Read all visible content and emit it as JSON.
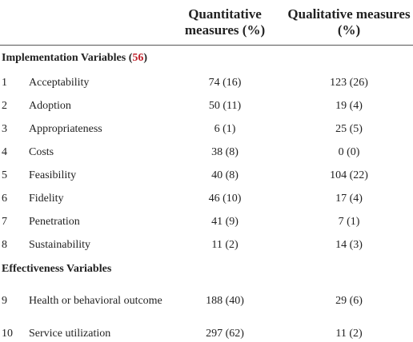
{
  "header": {
    "quantitative": "Quantitative measures (%)",
    "qualitative": "Qualitative measures (%)"
  },
  "sections": [
    {
      "title": "Implementation Variables",
      "ref": "56",
      "rows": [
        [
          "1",
          "Acceptability",
          "74 (16)",
          "123 (26)"
        ],
        [
          "2",
          "Adoption",
          "50 (11)",
          "19 (4)"
        ],
        [
          "3",
          "Appropriateness",
          "6 (1)",
          "25 (5)"
        ],
        [
          "4",
          "Costs",
          "38 (8)",
          "0 (0)"
        ],
        [
          "5",
          "Feasibility",
          "40 (8)",
          "104 (22)"
        ],
        [
          "6",
          "Fidelity",
          "46 (10)",
          "17 (4)"
        ],
        [
          "7",
          "Penetration",
          "41 (9)",
          "7 (1)"
        ],
        [
          "8",
          "Sustainability",
          "11 (2)",
          "14 (3)"
        ]
      ]
    },
    {
      "title": "Effectiveness Variables",
      "rows": [
        [
          "9",
          "Health or behavioral outcome",
          "188 (40)",
          "29 (6)"
        ],
        [
          "10",
          "Service utilization",
          "297 (62)",
          "11 (2)"
        ]
      ]
    }
  ]
}
